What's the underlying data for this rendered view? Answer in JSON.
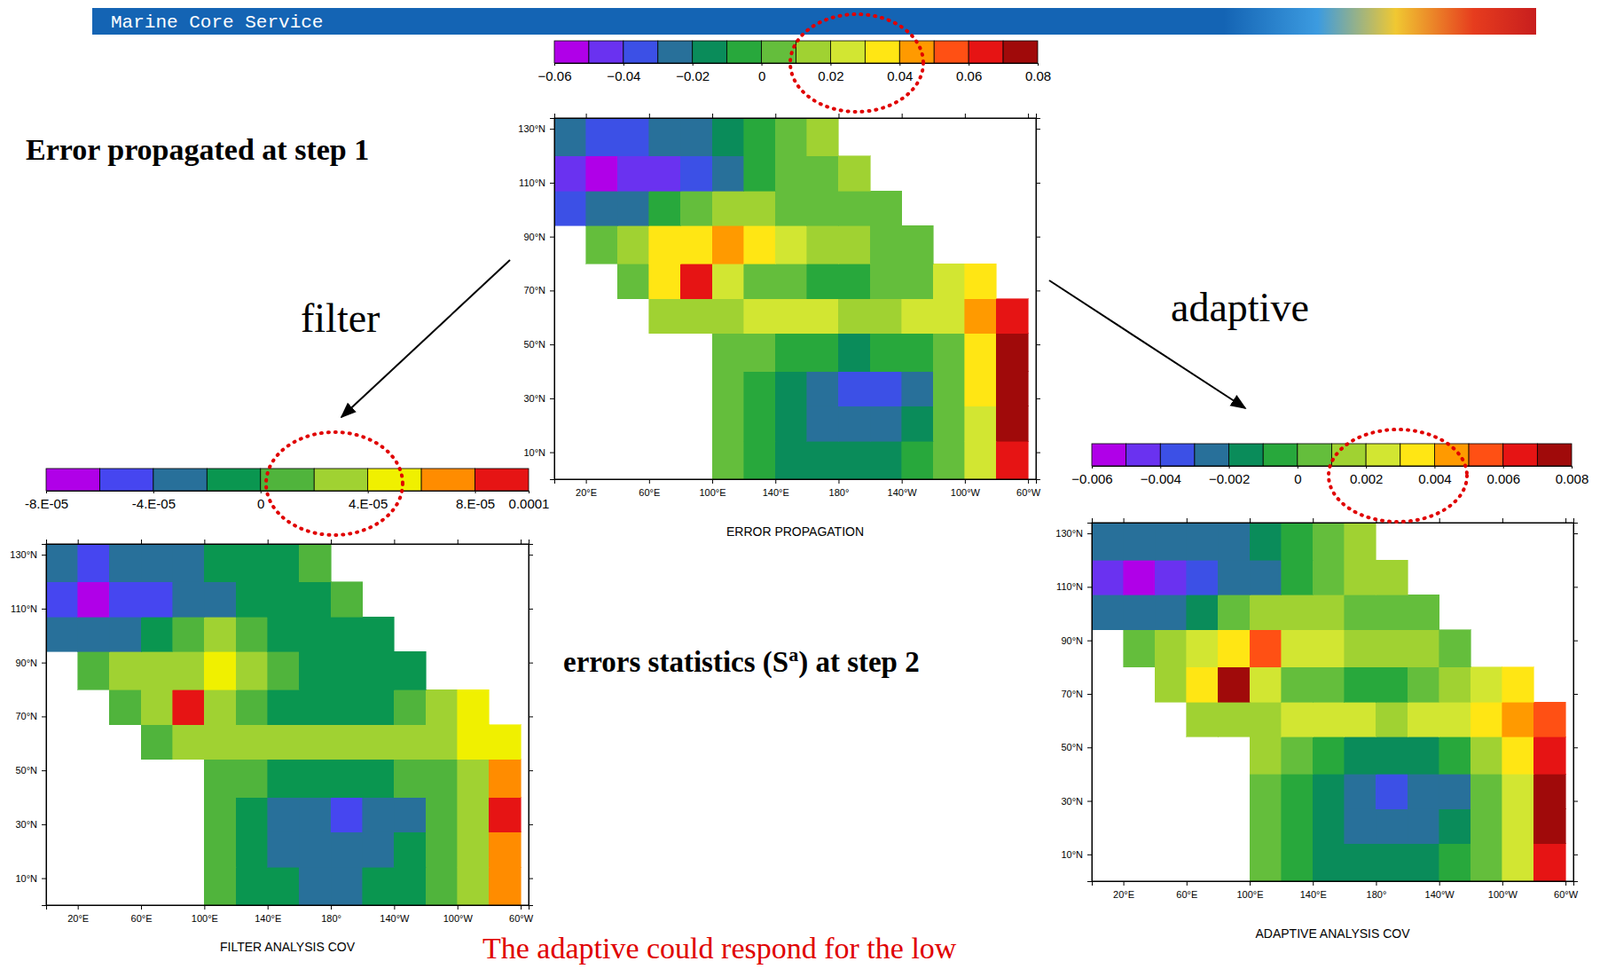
{
  "slide": {
    "header": "Marine Core Service",
    "heading_top": "Error propagated at step 1",
    "label_filter": "filter",
    "label_adaptive": "adaptive",
    "heading_middle": {
      "text_before": "errors statistics (S",
      "superscript": "a",
      "text_after": ") at step 2"
    },
    "footer": "The adaptive could respond for the low"
  },
  "chart_data": [
    {
      "type": "heatmap",
      "xlabel": "ERROR PROPAGATION",
      "xlim": [
        0,
        305
      ],
      "ylim": [
        0,
        134
      ],
      "xticks": [
        {
          "value": 20,
          "label": "20°E"
        },
        {
          "value": 60,
          "label": "60°E"
        },
        {
          "value": 100,
          "label": "100°E"
        },
        {
          "value": 140,
          "label": "140°E"
        },
        {
          "value": 180,
          "label": "180°"
        },
        {
          "value": 220,
          "label": "140°W"
        },
        {
          "value": 260,
          "label": "100°W"
        },
        {
          "value": 300,
          "label": "60°W"
        }
      ],
      "yticks": [
        {
          "value": 10,
          "label": "10°N"
        },
        {
          "value": 30,
          "label": "30°N"
        },
        {
          "value": 50,
          "label": "50°N"
        },
        {
          "value": 70,
          "label": "70°N"
        },
        {
          "value": 90,
          "label": "90°N"
        },
        {
          "value": 110,
          "label": "110°N"
        },
        {
          "value": 130,
          "label": "130°N"
        }
      ],
      "xbins": [
        0,
        20,
        40,
        60,
        80,
        100,
        120,
        140,
        160,
        180,
        200,
        220,
        240,
        260,
        280,
        300,
        305
      ],
      "ybins": [
        0,
        14,
        27,
        40,
        54,
        67,
        80,
        94,
        107,
        120,
        134
      ],
      "values": [
        [
          null,
          null,
          null,
          null,
          null,
          0.004,
          -0.006,
          -0.012,
          -0.014,
          -0.015,
          -0.012,
          -0.006,
          0.004,
          0.02,
          0.065,
          null
        ],
        [
          null,
          null,
          null,
          null,
          null,
          0.003,
          -0.008,
          -0.016,
          -0.022,
          -0.024,
          -0.022,
          -0.014,
          0.004,
          0.025,
          0.072,
          null
        ],
        [
          null,
          null,
          null,
          null,
          null,
          0.004,
          -0.005,
          -0.018,
          -0.028,
          -0.032,
          -0.03,
          -0.02,
          0.002,
          0.03,
          0.075,
          null
        ],
        [
          null,
          null,
          null,
          null,
          null,
          0.01,
          0.005,
          -0.005,
          -0.01,
          -0.012,
          -0.01,
          -0.005,
          0.01,
          0.035,
          0.07,
          null
        ],
        [
          null,
          null,
          null,
          0.012,
          0.015,
          0.018,
          0.02,
          0.02,
          0.02,
          0.018,
          0.018,
          0.02,
          0.028,
          0.04,
          0.06,
          null
        ],
        [
          null,
          null,
          0.01,
          0.035,
          0.065,
          0.02,
          0.005,
          0,
          -0.005,
          -0.004,
          0,
          0.01,
          0.02,
          0.03,
          null,
          null
        ],
        [
          null,
          0.005,
          0.015,
          0.03,
          0.035,
          0.045,
          0.03,
          0.022,
          0.015,
          0.012,
          0.01,
          0.008,
          null,
          null,
          null,
          null
        ],
        [
          -0.03,
          -0.025,
          -0.02,
          -0.01,
          0.005,
          0.015,
          0.012,
          0.01,
          0.005,
          0.002,
          0.005,
          null,
          null,
          null,
          null,
          null
        ],
        [
          -0.045,
          -0.052,
          -0.045,
          -0.04,
          -0.03,
          -0.02,
          -0.005,
          0.005,
          0.01,
          0.015,
          null,
          null,
          null,
          null,
          null,
          null
        ],
        [
          -0.025,
          -0.03,
          -0.03,
          -0.025,
          -0.02,
          -0.012,
          -0.005,
          0,
          0.012,
          null,
          null,
          null,
          null,
          null,
          null,
          null
        ]
      ],
      "colorbar": {
        "range": [
          -0.06,
          0.08
        ],
        "ticks": [
          {
            "value": -0.06,
            "label": "−0.06"
          },
          {
            "value": -0.04,
            "label": "−0.04"
          },
          {
            "value": -0.02,
            "label": "−0.02"
          },
          0,
          0.02,
          0.04,
          0.06,
          0.08
        ],
        "colors": [
          "#b000e8",
          "#6a32f0",
          "#3c50e6",
          "#28709a",
          "#0a8c5a",
          "#28a83c",
          "#64be3c",
          "#a0d232",
          "#d2e632",
          "#ffe614",
          "#ff9a00",
          "#ff5014",
          "#e61414",
          "#a00a0a"
        ]
      }
    },
    {
      "type": "heatmap",
      "xlabel": "FILTER ANALYSIS COV",
      "xlim": [
        0,
        305
      ],
      "ylim": [
        0,
        134
      ],
      "xticks": [
        {
          "value": 20,
          "label": "20°E"
        },
        {
          "value": 60,
          "label": "60°E"
        },
        {
          "value": 100,
          "label": "100°E"
        },
        {
          "value": 140,
          "label": "140°E"
        },
        {
          "value": 180,
          "label": "180°"
        },
        {
          "value": 220,
          "label": "140°W"
        },
        {
          "value": 260,
          "label": "100°W"
        },
        {
          "value": 300,
          "label": "60°W"
        }
      ],
      "yticks": [
        {
          "value": 10,
          "label": "10°N"
        },
        {
          "value": 30,
          "label": "30°N"
        },
        {
          "value": 50,
          "label": "50°N"
        },
        {
          "value": 70,
          "label": "70°N"
        },
        {
          "value": 90,
          "label": "90°N"
        },
        {
          "value": 110,
          "label": "110°N"
        },
        {
          "value": 130,
          "label": "130°N"
        }
      ],
      "xbins": [
        0,
        20,
        40,
        60,
        80,
        100,
        120,
        140,
        160,
        180,
        200,
        220,
        240,
        260,
        280,
        300,
        305
      ],
      "ybins": [
        0,
        14,
        27,
        40,
        54,
        67,
        80,
        94,
        107,
        120,
        134
      ],
      "values": [
        [
          null,
          null,
          null,
          null,
          null,
          5e-06,
          -1e-05,
          -2e-05,
          -2.5e-05,
          -2.5e-05,
          -2e-05,
          -1e-05,
          5e-06,
          2e-05,
          6e-05,
          null
        ],
        [
          null,
          null,
          null,
          null,
          null,
          5e-06,
          -1.5e-05,
          -2.5e-05,
          -3e-05,
          -3e-05,
          -3e-05,
          -2e-05,
          5e-06,
          2.5e-05,
          7e-05,
          null
        ],
        [
          null,
          null,
          null,
          null,
          null,
          1e-05,
          -1e-05,
          -3e-05,
          -3.5e-05,
          -4.5e-05,
          -3.5e-05,
          -2.5e-05,
          5e-06,
          3e-05,
          8.5e-05,
          null
        ],
        [
          null,
          null,
          null,
          null,
          null,
          1.5e-05,
          1e-05,
          -5e-06,
          -1e-05,
          -1e-05,
          -1e-05,
          0,
          1.5e-05,
          3.5e-05,
          7e-05,
          null
        ],
        [
          null,
          null,
          null,
          1.5e-05,
          2e-05,
          2.5e-05,
          2.5e-05,
          2.5e-05,
          2.5e-05,
          2.5e-05,
          2.5e-05,
          3e-05,
          3.5e-05,
          4.5e-05,
          5.5e-05,
          null
        ],
        [
          null,
          null,
          1.5e-05,
          3e-05,
          8.5e-05,
          2.5e-05,
          1e-05,
          -5e-06,
          -1e-05,
          -1e-05,
          -5e-06,
          5e-06,
          2.5e-05,
          4e-05,
          null,
          null
        ],
        [
          null,
          1e-05,
          2e-05,
          3e-05,
          3.5e-05,
          4.5e-05,
          2.5e-05,
          1e-05,
          -5e-06,
          -1e-05,
          -1e-05,
          -1e-05,
          null,
          null,
          null,
          null
        ],
        [
          -3.5e-05,
          -3e-05,
          -2.5e-05,
          -1.5e-05,
          5e-06,
          2e-05,
          1e-05,
          -5e-06,
          -1e-05,
          -1e-05,
          -1e-05,
          null,
          null,
          null,
          null,
          null
        ],
        [
          -6e-05,
          -6.5e-05,
          -5e-05,
          -4.5e-05,
          -4e-05,
          -3e-05,
          -1.5e-05,
          -5e-06,
          -5e-06,
          5e-06,
          null,
          null,
          null,
          null,
          null,
          null
        ],
        [
          -3.5e-05,
          -4.5e-05,
          -4e-05,
          -3.5e-05,
          -3e-05,
          -2e-05,
          -1e-05,
          -5e-06,
          5e-06,
          null,
          null,
          null,
          null,
          null,
          null,
          null
        ]
      ],
      "colorbar": {
        "range": [
          -8e-05,
          0.0001
        ],
        "ticks": [
          {
            "value": -8e-05,
            "label": "-8.E-05"
          },
          {
            "value": -4e-05,
            "label": "-4.E-05"
          },
          0,
          {
            "value": 4e-05,
            "label": "4.E-05"
          },
          {
            "value": 8e-05,
            "label": "8.E-05"
          },
          0.0001
        ],
        "colors": [
          "#b000e8",
          "#4646f0",
          "#28709a",
          "#0a9650",
          "#50b43c",
          "#a0d232",
          "#f0f000",
          "#ff8c00",
          "#e61414"
        ]
      }
    },
    {
      "type": "heatmap",
      "xlabel": "ADAPTIVE ANALYSIS COV",
      "xlim": [
        0,
        305
      ],
      "ylim": [
        0,
        134
      ],
      "xticks": [
        {
          "value": 20,
          "label": "20°E"
        },
        {
          "value": 60,
          "label": "60°E"
        },
        {
          "value": 100,
          "label": "100°E"
        },
        {
          "value": 140,
          "label": "140°E"
        },
        {
          "value": 180,
          "label": "180°"
        },
        {
          "value": 220,
          "label": "140°W"
        },
        {
          "value": 260,
          "label": "100°W"
        },
        {
          "value": 300,
          "label": "60°W"
        }
      ],
      "yticks": [
        {
          "value": 10,
          "label": "10°N"
        },
        {
          "value": 30,
          "label": "30°N"
        },
        {
          "value": 50,
          "label": "50°N"
        },
        {
          "value": 70,
          "label": "70°N"
        },
        {
          "value": 90,
          "label": "90°N"
        },
        {
          "value": 110,
          "label": "110°N"
        },
        {
          "value": 130,
          "label": "130°N"
        }
      ],
      "xbins": [
        0,
        20,
        40,
        60,
        80,
        100,
        120,
        140,
        160,
        180,
        200,
        220,
        240,
        260,
        280,
        300,
        305
      ],
      "ybins": [
        0,
        14,
        27,
        40,
        54,
        67,
        80,
        94,
        107,
        120,
        134
      ],
      "values": [
        [
          null,
          null,
          null,
          null,
          null,
          0.0004,
          -0.0006,
          -0.0012,
          -0.0014,
          -0.0015,
          -0.0012,
          -0.0006,
          0.0004,
          0.0022,
          0.0068,
          null
        ],
        [
          null,
          null,
          null,
          null,
          null,
          0.0003,
          -0.0008,
          -0.0016,
          -0.0022,
          -0.0024,
          -0.0022,
          -0.0014,
          0.0004,
          0.0026,
          0.0072,
          null
        ],
        [
          null,
          null,
          null,
          null,
          null,
          0.0004,
          -0.0005,
          -0.0018,
          -0.0028,
          -0.0033,
          -0.003,
          -0.002,
          0.0002,
          0.003,
          0.0075,
          null
        ],
        [
          null,
          null,
          null,
          null,
          null,
          0.001,
          0.0005,
          -0.0005,
          -0.001,
          -0.0012,
          -0.001,
          -0.0005,
          0.001,
          0.0036,
          0.0065,
          null
        ],
        [
          null,
          null,
          null,
          0.0012,
          0.0015,
          0.0018,
          0.002,
          0.002,
          0.002,
          0.0018,
          0.002,
          0.0025,
          0.0035,
          0.0045,
          0.0055,
          null
        ],
        [
          null,
          null,
          0.001,
          0.0035,
          0.0075,
          0.002,
          0.0005,
          0,
          -0.0005,
          -0.0004,
          0,
          0.001,
          0.002,
          0.0035,
          null,
          null
        ],
        [
          null,
          0.0005,
          0.0015,
          0.003,
          0.0035,
          0.005,
          0.003,
          0.0022,
          0.0015,
          0.0012,
          0.001,
          0.0008,
          null,
          null,
          null,
          null
        ],
        [
          -0.003,
          -0.0025,
          -0.002,
          -0.001,
          0.0005,
          0.0015,
          0.0012,
          0.001,
          0.0005,
          0.0002,
          0.0005,
          null,
          null,
          null,
          null,
          null
        ],
        [
          -0.0045,
          -0.0052,
          -0.0045,
          -0.004,
          -0.003,
          -0.002,
          -0.0005,
          0.0005,
          0.001,
          0.0015,
          null,
          null,
          null,
          null,
          null,
          null
        ],
        [
          -0.0025,
          -0.003,
          -0.003,
          -0.0025,
          -0.002,
          -0.0012,
          -0.0005,
          0,
          0.0012,
          null,
          null,
          null,
          null,
          null,
          null,
          null
        ]
      ],
      "colorbar": {
        "range": [
          -0.006,
          0.008
        ],
        "ticks": [
          {
            "value": -0.006,
            "label": "−0.006"
          },
          {
            "value": -0.004,
            "label": "−0.004"
          },
          {
            "value": -0.002,
            "label": "−0.002"
          },
          0,
          0.002,
          0.004,
          0.006,
          0.008
        ],
        "colors": [
          "#b000e8",
          "#6a32f0",
          "#3c50e6",
          "#28709a",
          "#0a8c5a",
          "#28a83c",
          "#64be3c",
          "#a0d232",
          "#d2e632",
          "#ffe614",
          "#ff9a00",
          "#ff5014",
          "#e61414",
          "#a00a0a"
        ]
      }
    }
  ]
}
